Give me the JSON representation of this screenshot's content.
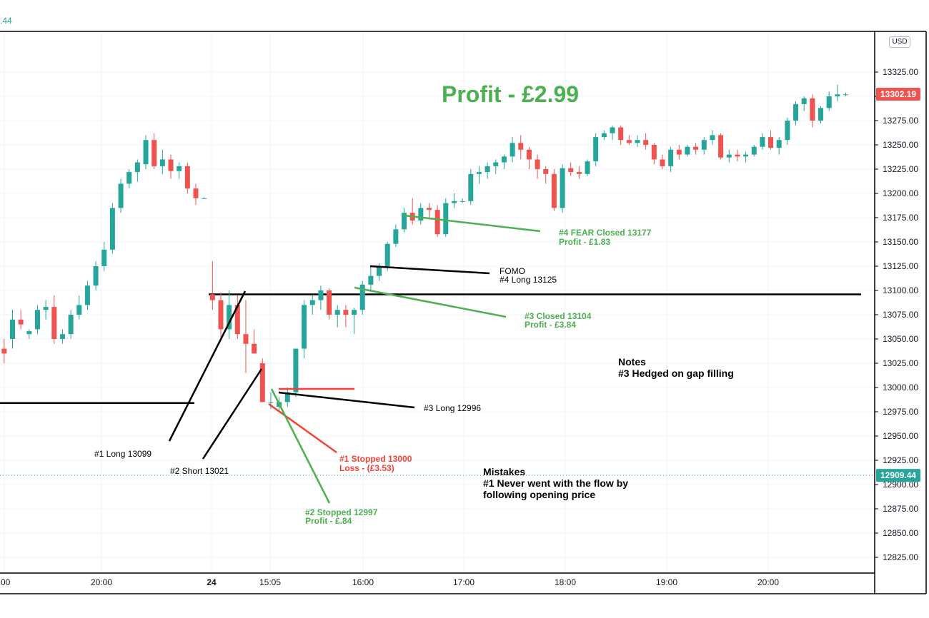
{
  "top_value": ".44",
  "currency": "USD",
  "title": "Profit - £2.99",
  "colors": {
    "up": "#26a69a",
    "down": "#ef5350",
    "green_text": "#4caf50",
    "red_text": "#f44336",
    "grid": "#f0f3fa"
  },
  "price_tags": [
    {
      "label": "13302.19",
      "value": 13302.19,
      "color": "#ef5350"
    },
    {
      "label": "12909.44",
      "value": 12909.44,
      "color": "#26a69a"
    }
  ],
  "annotations": {
    "long1": "#1 Long 13099",
    "short2": "#2 Short 13021",
    "long3": "#3 Long 12996",
    "stopped1_l1": "#1 Stopped 13000",
    "stopped1_l2": "Loss - (£3.53)",
    "stopped2_l1": "#2 Stopped 12997",
    "stopped2_l2": "Profit - £.84",
    "closed3_l1": "#3 Closed 13104",
    "closed3_l2": "Profit - £3.84",
    "fomo_l1": "FOMO",
    "fomo_l2": "#4 Long 13125",
    "closed4_l1": "#4 FEAR Closed 13177",
    "closed4_l2": "Profit - £1.83"
  },
  "notes": {
    "heading": "Notes",
    "line1": "#3  Hedged on gap filling"
  },
  "mistakes": {
    "heading": "Mistakes",
    "line1": "#1  Never went with the flow by",
    "line2": "following opening price"
  },
  "chart_data": {
    "type": "candlestick",
    "ylim": [
      12805,
      13355
    ],
    "y_ticks": [
      13325,
      13300,
      13275,
      13250,
      13225,
      13200,
      13175,
      13150,
      13125,
      13100,
      13075,
      13050,
      13025,
      13000,
      12975,
      12950,
      12925,
      12900,
      12875,
      12850,
      12825
    ],
    "x_ticks": [
      ":00",
      "20:00",
      "24",
      "15:05",
      "16:00",
      "17:00",
      "18:00",
      "19:00",
      "20:00"
    ],
    "horizontal_lines": [
      13096,
      12984
    ],
    "candles": [
      [
        13040,
        13050,
        13025,
        13035
      ],
      [
        13050,
        13080,
        13040,
        13070
      ],
      [
        13070,
        13080,
        13060,
        13065
      ],
      [
        13055,
        13060,
        13050,
        13058
      ],
      [
        13060,
        13085,
        13055,
        13080
      ],
      [
        13080,
        13090,
        13070,
        13083
      ],
      [
        13083,
        13095,
        13045,
        13050
      ],
      [
        13050,
        13060,
        13045,
        13055
      ],
      [
        13055,
        13080,
        13050,
        13075
      ],
      [
        13075,
        13095,
        13070,
        13085
      ],
      [
        13085,
        13110,
        13080,
        13105
      ],
      [
        13105,
        13130,
        13100,
        13125
      ],
      [
        13125,
        13150,
        13120,
        13142
      ],
      [
        13142,
        13190,
        13138,
        13185
      ],
      [
        13185,
        13215,
        13180,
        13210
      ],
      [
        13210,
        13225,
        13205,
        13222
      ],
      [
        13222,
        13235,
        13212,
        13232
      ],
      [
        13230,
        13260,
        13225,
        13255
      ],
      [
        13255,
        13262,
        13225,
        13228
      ],
      [
        13228,
        13245,
        13220,
        13235
      ],
      [
        13235,
        13240,
        13215,
        13223
      ],
      [
        13223,
        13232,
        13215,
        13228
      ],
      [
        13228,
        13232,
        13200,
        13205
      ],
      [
        13205,
        13210,
        13188,
        13195
      ],
      [
        13195,
        13196,
        13195,
        13195
      ],
      [
        13096,
        13130,
        13080,
        13090
      ],
      [
        13090,
        13098,
        13050,
        13060
      ],
      [
        13060,
        13100,
        13050,
        13085
      ],
      [
        13085,
        13095,
        13050,
        13055
      ],
      [
        13055,
        13090,
        13015,
        13045
      ],
      [
        13045,
        13060,
        13035,
        13035
      ],
      [
        13025,
        13030,
        12985,
        12985
      ],
      [
        12985,
        12995,
        12978,
        12985
      ],
      [
        12980,
        12990,
        12975,
        12985
      ],
      [
        12985,
        13000,
        12980,
        12995
      ],
      [
        12995,
        13040,
        12990,
        13040
      ],
      [
        13040,
        13090,
        13030,
        13085
      ],
      [
        13085,
        13095,
        13075,
        13090
      ],
      [
        13090,
        13105,
        13080,
        13100
      ],
      [
        13100,
        13102,
        13070,
        13075
      ],
      [
        13075,
        13085,
        13062,
        13080
      ],
      [
        13080,
        13085,
        13062,
        13075
      ],
      [
        13075,
        13082,
        13055,
        13080
      ],
      [
        13080,
        13110,
        13075,
        13106
      ],
      [
        13106,
        13125,
        13100,
        13115
      ],
      [
        13115,
        13128,
        13110,
        13125
      ],
      [
        13125,
        13150,
        13120,
        13148
      ],
      [
        13148,
        13168,
        13145,
        13163
      ],
      [
        13163,
        13185,
        13160,
        13180
      ],
      [
        13180,
        13195,
        13168,
        13172
      ],
      [
        13172,
        13190,
        13168,
        13185
      ],
      [
        13185,
        13190,
        13175,
        13183
      ],
      [
        13183,
        13188,
        13155,
        13158
      ],
      [
        13158,
        13195,
        13155,
        13190
      ],
      [
        13190,
        13200,
        13185,
        13192
      ],
      [
        13192,
        13195,
        13190,
        13192
      ],
      [
        13192,
        13225,
        13188,
        13220
      ],
      [
        13220,
        13228,
        13210,
        13222
      ],
      [
        13222,
        13232,
        13215,
        13228
      ],
      [
        13228,
        13235,
        13220,
        13232
      ],
      [
        13232,
        13240,
        13225,
        13238
      ],
      [
        13238,
        13258,
        13232,
        13252
      ],
      [
        13252,
        13260,
        13235,
        13245
      ],
      [
        13245,
        13248,
        13225,
        13235
      ],
      [
        13235,
        13240,
        13215,
        13225
      ],
      [
        13225,
        13228,
        13210,
        13220
      ],
      [
        13220,
        13225,
        13182,
        13185
      ],
      [
        13185,
        13230,
        13180,
        13226
      ],
      [
        13226,
        13232,
        13218,
        13222
      ],
      [
        13222,
        13228,
        13215,
        13220
      ],
      [
        13220,
        13235,
        13218,
        13233
      ],
      [
        13233,
        13262,
        13228,
        13258
      ],
      [
        13258,
        13265,
        13255,
        13262
      ],
      [
        13262,
        13270,
        13255,
        13268
      ],
      [
        13268,
        13270,
        13250,
        13255
      ],
      [
        13255,
        13260,
        13250,
        13252
      ],
      [
        13252,
        13260,
        13248,
        13255
      ],
      [
        13255,
        13262,
        13245,
        13250
      ],
      [
        13250,
        13252,
        13230,
        13235
      ],
      [
        13235,
        13240,
        13225,
        13228
      ],
      [
        13228,
        13248,
        13222,
        13245
      ],
      [
        13245,
        13250,
        13235,
        13240
      ],
      [
        13240,
        13250,
        13238,
        13248
      ],
      [
        13248,
        13252,
        13240,
        13245
      ],
      [
        13245,
        13258,
        13240,
        13255
      ],
      [
        13255,
        13265,
        13250,
        13260
      ],
      [
        13260,
        13262,
        13235,
        13237
      ],
      [
        13237,
        13245,
        13232,
        13240
      ],
      [
        13240,
        13245,
        13233,
        13238
      ],
      [
        13238,
        13243,
        13232,
        13240
      ],
      [
        13240,
        13250,
        13238,
        13248
      ],
      [
        13248,
        13262,
        13245,
        13258
      ],
      [
        13258,
        13265,
        13245,
        13247
      ],
      [
        13247,
        13258,
        13240,
        13255
      ],
      [
        13255,
        13278,
        13250,
        13275
      ],
      [
        13275,
        13295,
        13270,
        13292
      ],
      [
        13292,
        13300,
        13285,
        13298
      ],
      [
        13298,
        13302,
        13268,
        13275
      ],
      [
        13275,
        13290,
        13272,
        13288
      ],
      [
        13288,
        13305,
        13285,
        13300
      ],
      [
        13300,
        13312,
        13295,
        13302
      ],
      [
        13302,
        13304,
        13300,
        13302
      ]
    ]
  }
}
